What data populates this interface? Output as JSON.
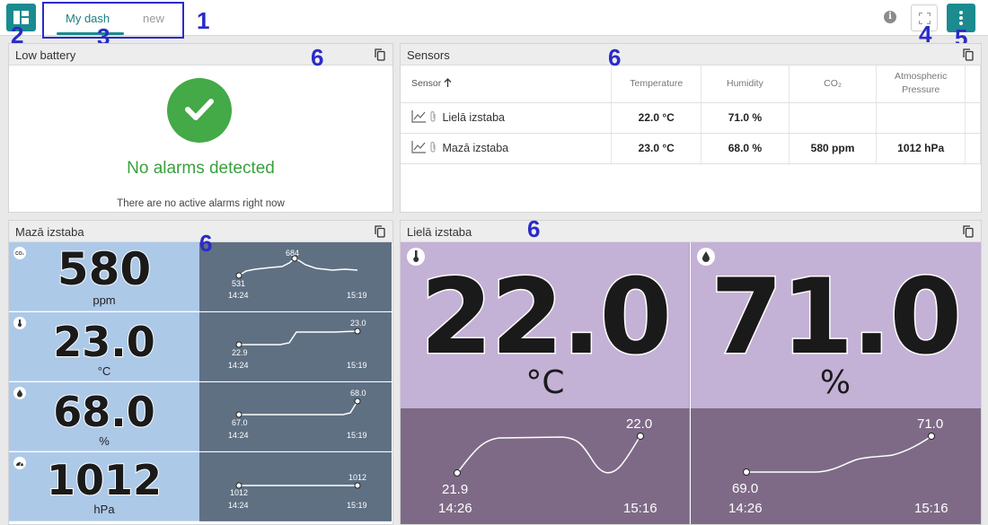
{
  "tabs": [
    {
      "label": "My dash"
    },
    {
      "label": "new"
    }
  ],
  "callouts": [
    "1",
    "2",
    "3",
    "4",
    "5",
    "6",
    "6",
    "6",
    "6"
  ],
  "info_icon": "i",
  "low_battery": {
    "title": "Low battery",
    "status": "No alarms detected",
    "subtext": "There are no active alarms right now"
  },
  "sensors": {
    "title": "Sensors",
    "columns": [
      "Sensor",
      "Temperature",
      "Humidity",
      "CO₂",
      "Atmospheric Pressure"
    ],
    "rows": [
      {
        "name": "Lielā izstaba",
        "temperature": "22.0 °C",
        "humidity": "71.0 %",
        "co2": "",
        "pressure": ""
      },
      {
        "name": "Mazā izstaba",
        "temperature": "23.0 °C",
        "humidity": "68.0 %",
        "co2": "580 ppm",
        "pressure": "1012 hPa"
      }
    ]
  },
  "maza": {
    "title": "Mazā izstaba",
    "metrics": [
      {
        "icon": "co2-icon",
        "badge_text": "CO₂",
        "value": "580",
        "unit": "ppm",
        "start_label": "531",
        "end_label": "684",
        "start_time": "14:24",
        "end_time": "15:19"
      },
      {
        "icon": "thermometer-icon",
        "value": "23.0",
        "unit": "°C",
        "start_label": "22.9",
        "end_label": "23.0",
        "start_time": "14:24",
        "end_time": "15:19"
      },
      {
        "icon": "humidity-icon",
        "value": "68.0",
        "unit": "%",
        "start_label": "67.0",
        "end_label": "68.0",
        "start_time": "14:24",
        "end_time": "15:19"
      },
      {
        "icon": "pressure-icon",
        "value": "1012",
        "unit": "hPa",
        "start_label": "1012",
        "end_label": "1012",
        "start_time": "14:24",
        "end_time": "15:19"
      }
    ]
  },
  "liela": {
    "title": "Lielā izstaba",
    "temperature": {
      "icon": "thermometer-icon",
      "value": "22.0",
      "unit": "°C",
      "start_label": "21.9",
      "end_label": "22.0",
      "start_time": "14:26",
      "end_time": "15:16"
    },
    "humidity": {
      "icon": "humidity-icon",
      "value": "71.0",
      "unit": "%",
      "start_label": "69.0",
      "end_label": "71.0",
      "start_time": "14:26",
      "end_time": "15:16"
    }
  },
  "colors": {
    "accent": "#1b8b8f",
    "callout": "#2a2bc8",
    "ok_green": "#44a947",
    "maza_value_bg": "#adc9e8",
    "maza_chart_bg": "#5f7083",
    "liela_value_bg": "#c4b1d6",
    "liela_chart_bg": "#7e6a86"
  }
}
